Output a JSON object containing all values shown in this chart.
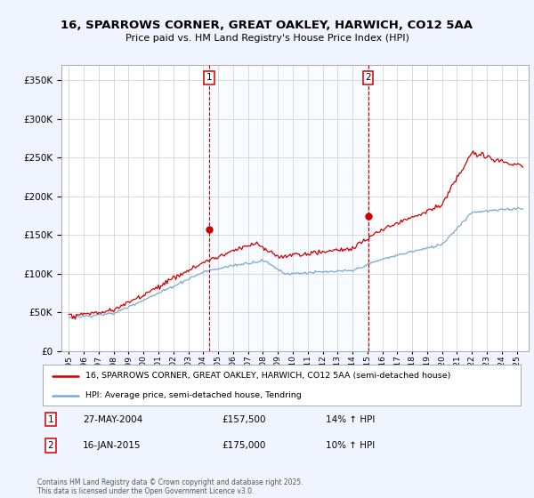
{
  "title_line1": "16, SPARROWS CORNER, GREAT OAKLEY, HARWICH, CO12 5AA",
  "title_line2": "Price paid vs. HM Land Registry's House Price Index (HPI)",
  "ytick_values": [
    0,
    50000,
    100000,
    150000,
    200000,
    250000,
    300000,
    350000
  ],
  "ylim": [
    0,
    370000
  ],
  "legend_label_red": "16, SPARROWS CORNER, GREAT OAKLEY, HARWICH, CO12 5AA (semi-detached house)",
  "legend_label_blue": "HPI: Average price, semi-detached house, Tendring",
  "sale1_date": "27-MAY-2004",
  "sale1_price": "£157,500",
  "sale1_hpi": "14% ↑ HPI",
  "sale2_date": "16-JAN-2015",
  "sale2_price": "£175,000",
  "sale2_hpi": "10% ↑ HPI",
  "sale1_x": 2004.41,
  "sale1_y": 157500,
  "sale2_x": 2015.04,
  "sale2_y": 175000,
  "red_color": "#cc0000",
  "blue_color": "#7aaad0",
  "shade_color": "#ddeeff",
  "vline_color": "#cc0000",
  "copyright_text": "Contains HM Land Registry data © Crown copyright and database right 2025.\nThis data is licensed under the Open Government Licence v3.0.",
  "background_color": "#f0f4ff",
  "plot_bg_color": "#ffffff",
  "grid_color": "#cccccc",
  "xlim_left": 1994.5,
  "xlim_right": 2025.8
}
